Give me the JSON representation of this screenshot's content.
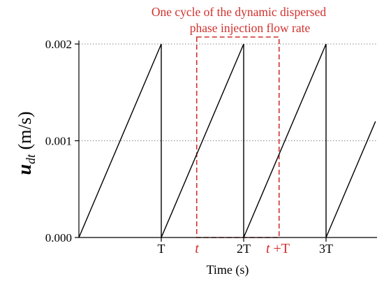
{
  "chart_data": {
    "type": "line",
    "title": "",
    "xlabel": "Time (s)",
    "ylabel_main": "u",
    "ylabel_sub": "dt",
    "ylabel_unit": " (m/s)",
    "ylim": [
      0,
      0.002
    ],
    "xlim": [
      0,
      3.6
    ],
    "yticks": [
      {
        "value": 0.0,
        "label": "0.000"
      },
      {
        "value": 0.001,
        "label": "0.001"
      },
      {
        "value": 0.002,
        "label": "0.002"
      }
    ],
    "xticks": [
      {
        "value": 1,
        "label": "T"
      },
      {
        "value": 2,
        "label": "2T"
      },
      {
        "value": 3,
        "label": "3T"
      }
    ],
    "grid_y": [
      0.001,
      0.002
    ],
    "series": [
      {
        "points": [
          [
            0,
            0
          ],
          [
            1,
            0.002
          ],
          [
            1,
            0
          ],
          [
            2,
            0.002
          ],
          [
            2,
            0
          ],
          [
            3,
            0.002
          ],
          [
            3,
            0
          ],
          [
            3.6,
            0.0012
          ]
        ]
      }
    ],
    "annotation": {
      "text_line1": "One cycle of the dynamic dispersed",
      "text_line2": "phase injection flow rate",
      "x_start": 1.43,
      "x_end": 2.43,
      "label_start": "t",
      "label_end_italic": "t",
      "label_end_rest": " +T",
      "color": "#d0312d"
    },
    "colors": {
      "line": "#000000",
      "grid": "#888888",
      "annotation": "#d0312d"
    }
  }
}
